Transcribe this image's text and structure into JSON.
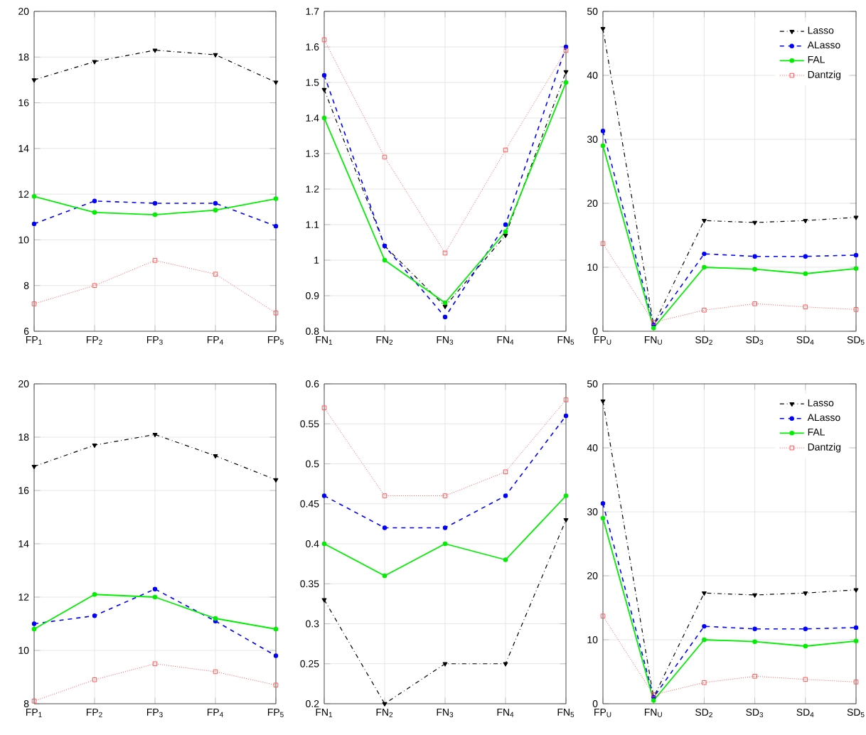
{
  "chart_data": [
    {
      "type": "line",
      "categories": [
        "FP$_{1}$",
        "FP$_{2}$",
        "FP$_{3}$",
        "FP$_{4}$",
        "FP$_{5}$"
      ],
      "ylim": [
        6,
        20
      ],
      "yticks": [
        6,
        8,
        10,
        12,
        14,
        16,
        18,
        20
      ],
      "grid": true,
      "series": [
        {
          "color": "#000000",
          "marker": "triangle",
          "line_style": "dashdot",
          "values": [
            17.0,
            17.8,
            18.3,
            18.1,
            16.9
          ]
        },
        {
          "color": "#0000ff",
          "marker": "circle",
          "line_style": "dashed",
          "values": [
            10.7,
            11.7,
            11.6,
            11.6,
            10.6
          ]
        },
        {
          "color": "#00ee00",
          "marker": "circle",
          "line_style": "solid",
          "values": [
            11.9,
            11.2,
            11.1,
            11.3,
            11.8
          ]
        },
        {
          "color": "#ff5555",
          "marker": "square",
          "line_style": "dotted",
          "values": [
            7.2,
            8.0,
            9.1,
            8.5,
            6.8
          ]
        }
      ]
    },
    {
      "type": "line",
      "categories": [
        "FN$_{1}$",
        "FN$_{2}$",
        "FN$_{3}$",
        "FN$_{4}$",
        "FN$_{5}$"
      ],
      "ylim": [
        0.8,
        1.7
      ],
      "yticks": [
        0.8,
        0.9,
        1,
        1.1,
        1.2,
        1.3,
        1.4,
        1.5,
        1.6,
        1.7
      ],
      "grid": true,
      "series": [
        {
          "color": "#000000",
          "marker": "triangle",
          "line_style": "dashdot",
          "values": [
            1.48,
            1.04,
            0.87,
            1.07,
            1.53
          ]
        },
        {
          "color": "#0000ff",
          "marker": "circle",
          "line_style": "dashed",
          "values": [
            1.52,
            1.04,
            0.84,
            1.1,
            1.6
          ]
        },
        {
          "color": "#00ee00",
          "marker": "circle",
          "line_style": "solid",
          "values": [
            1.4,
            1.0,
            0.88,
            1.08,
            1.5
          ]
        },
        {
          "color": "#ff5555",
          "marker": "square",
          "line_style": "dotted",
          "values": [
            1.62,
            1.29,
            1.02,
            1.31,
            1.59
          ]
        }
      ]
    },
    {
      "type": "line",
      "categories": [
        "FP$_{U}$",
        "FN$_{U}$",
        "SD$_{2}$",
        "SD$_{3}$",
        "SD$_{4}$",
        "SD$_{5}$"
      ],
      "ylim": [
        0,
        50
      ],
      "yticks": [
        0,
        10,
        20,
        30,
        40,
        50
      ],
      "grid": true,
      "legend": "top right",
      "series": [
        {
          "name": "Lasso",
          "color": "#000000",
          "marker": "triangle",
          "line_style": "dashdot",
          "values": [
            47.3,
            1.0,
            17.3,
            17.0,
            17.3,
            17.8
          ]
        },
        {
          "name": "ALasso",
          "color": "#0000ff",
          "marker": "circle",
          "line_style": "dashed",
          "values": [
            31.3,
            1.0,
            12.1,
            11.7,
            11.7,
            11.9
          ]
        },
        {
          "name": "FAL",
          "color": "#00ee00",
          "marker": "circle",
          "line_style": "solid",
          "values": [
            29.0,
            0.5,
            10.0,
            9.7,
            9.0,
            9.8
          ]
        },
        {
          "name": "Dantzig",
          "color": "#ff5555",
          "marker": "square",
          "line_style": "dotted",
          "values": [
            13.7,
            1.4,
            3.3,
            4.3,
            3.8,
            3.4
          ]
        }
      ]
    },
    {
      "type": "line",
      "categories": [
        "FP$_{1}$",
        "FP$_{2}$",
        "FP$_{3}$",
        "FP$_{4}$",
        "FP$_{5}$"
      ],
      "ylim": [
        8,
        20
      ],
      "yticks": [
        8,
        10,
        12,
        14,
        16,
        18,
        20
      ],
      "grid": true,
      "series": [
        {
          "color": "#000000",
          "marker": "triangle",
          "line_style": "dashdot",
          "values": [
            16.9,
            17.7,
            18.1,
            17.3,
            16.4
          ]
        },
        {
          "color": "#0000ff",
          "marker": "circle",
          "line_style": "dashed",
          "values": [
            11.0,
            11.3,
            12.3,
            11.1,
            9.8
          ]
        },
        {
          "color": "#00ee00",
          "marker": "circle",
          "line_style": "solid",
          "values": [
            10.8,
            12.1,
            12.0,
            11.2,
            10.8
          ]
        },
        {
          "color": "#ff5555",
          "marker": "square",
          "line_style": "dotted",
          "values": [
            8.1,
            8.9,
            9.5,
            9.2,
            8.7
          ]
        }
      ]
    },
    {
      "type": "line",
      "categories": [
        "FN$_{1}$",
        "FN$_{2}$",
        "FN$_{3}$",
        "FN$_{4}$",
        "FN$_{5}$"
      ],
      "ylim": [
        0.2,
        0.6
      ],
      "yticks": [
        0.2,
        0.25,
        0.3,
        0.35,
        0.4,
        0.45,
        0.5,
        0.55,
        0.6
      ],
      "grid": true,
      "series": [
        {
          "color": "#000000",
          "marker": "triangle",
          "line_style": "dashdot",
          "values": [
            0.33,
            0.2,
            0.25,
            0.25,
            0.43
          ]
        },
        {
          "color": "#0000ff",
          "marker": "circle",
          "line_style": "dashed",
          "values": [
            0.46,
            0.42,
            0.42,
            0.46,
            0.56
          ]
        },
        {
          "color": "#00ee00",
          "marker": "circle",
          "line_style": "solid",
          "values": [
            0.4,
            0.36,
            0.4,
            0.38,
            0.46
          ]
        },
        {
          "color": "#ff5555",
          "marker": "square",
          "line_style": "dotted",
          "values": [
            0.57,
            0.46,
            0.46,
            0.49,
            0.58
          ]
        }
      ]
    },
    {
      "type": "line",
      "categories": [
        "FP$_{U}$",
        "FN$_{U}$",
        "SD$_{2}$",
        "SD$_{3}$",
        "SD$_{4}$",
        "SD$_{5}$"
      ],
      "ylim": [
        0,
        50
      ],
      "yticks": [
        0,
        10,
        20,
        30,
        40,
        50
      ],
      "grid": true,
      "legend": "top right",
      "series": [
        {
          "name": "Lasso",
          "color": "#000000",
          "marker": "triangle",
          "line_style": "dashdot",
          "values": [
            47.3,
            1.0,
            17.3,
            17.0,
            17.3,
            17.8
          ]
        },
        {
          "name": "ALasso",
          "color": "#0000ff",
          "marker": "circle",
          "line_style": "dashed",
          "values": [
            31.3,
            1.0,
            12.1,
            11.7,
            11.7,
            11.9
          ]
        },
        {
          "name": "FAL",
          "color": "#00ee00",
          "marker": "circle",
          "line_style": "solid",
          "values": [
            29.0,
            0.5,
            10.0,
            9.7,
            9.0,
            9.8
          ]
        },
        {
          "name": "Dantzig",
          "color": "#ff5555",
          "marker": "square",
          "line_style": "dotted",
          "values": [
            13.7,
            1.4,
            3.3,
            4.3,
            3.8,
            3.4
          ]
        }
      ]
    }
  ]
}
